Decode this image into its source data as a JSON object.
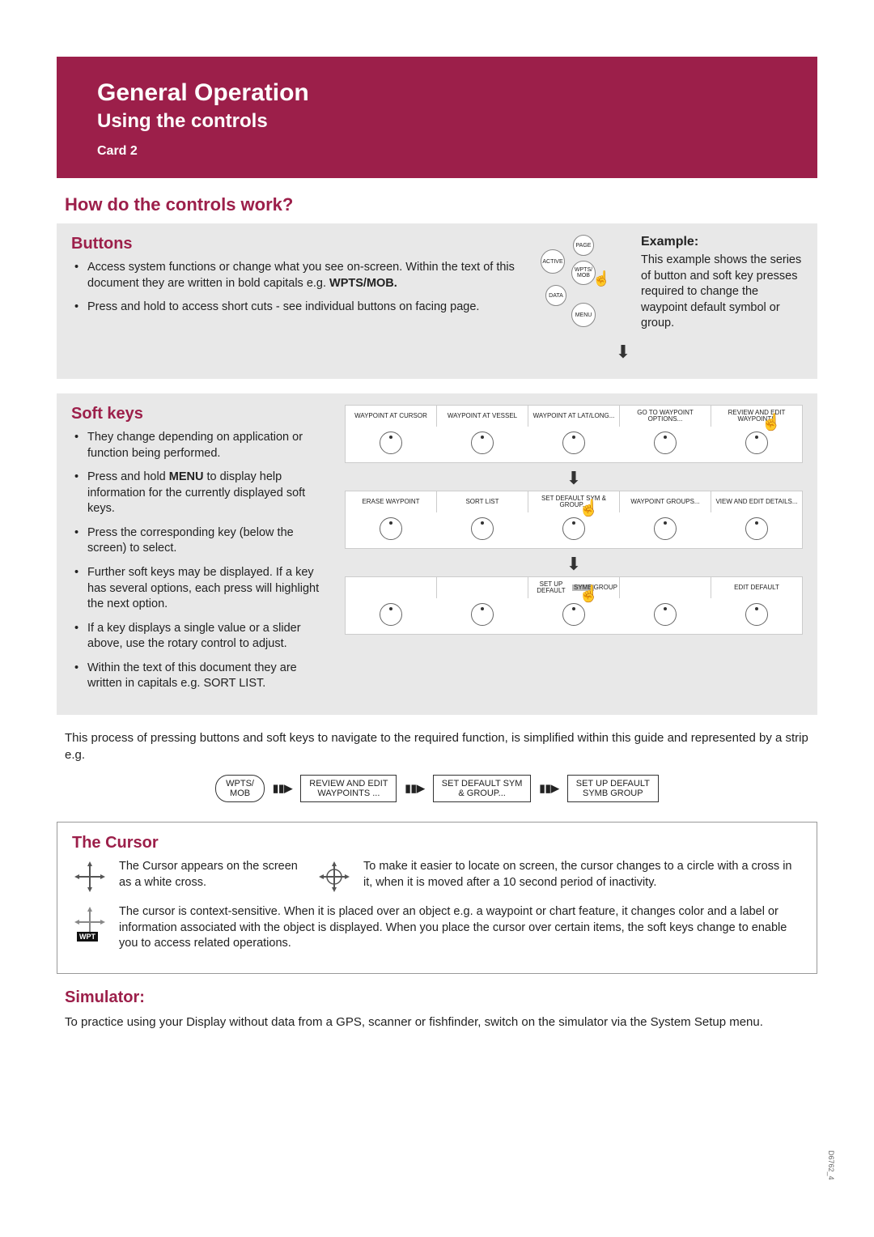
{
  "colors": {
    "brand": "#9c1f4a",
    "gray_box": "#e8e8e8",
    "text": "#222222",
    "border": "#999999"
  },
  "header": {
    "title": "General Operation",
    "subtitle": "Using the controls",
    "card": "Card 2"
  },
  "question": "How do the controls work?",
  "buttons_section": {
    "heading": "Buttons",
    "items": [
      {
        "pre": "Access system functions or change what you see on-screen. Within the text of this document they are written in bold capitals e.g. ",
        "bold": "WPTS/MOB."
      },
      {
        "pre": "Press and hold to access short cuts - see individual buttons on facing page."
      }
    ]
  },
  "example": {
    "heading": "Example:",
    "text": "This example shows the series of button and soft key presses required to change the waypoint default symbol or group.",
    "round_buttons": [
      "PAGE",
      "ACTIVE",
      "WPTS/\nMOB",
      "DATA",
      "MENU"
    ]
  },
  "softkeys_section": {
    "heading": "Soft keys",
    "items": [
      "They change depending on application or function being performed.",
      {
        "pre": "Press and hold ",
        "bold": "MENU",
        "post": " to display help information for the currently displayed soft keys."
      },
      "Press the corresponding key (below the screen) to select.",
      "Further soft keys may be displayed. If a key has several options, each press will highlight the next option.",
      "If a key displays a single value or a slider above, use the rotary control to adjust.",
      "Within the text of this document they are written in capitals e.g. SORT LIST."
    ]
  },
  "soft_panels": [
    {
      "labels": [
        "WAYPOINT AT CURSOR",
        "WAYPOINT AT VESSEL",
        "WAYPOINT AT LAT/LONG...",
        "GO TO WAYPOINT OPTIONS...",
        "REVIEW AND EDIT WAYPOINTS"
      ],
      "press_index": 4
    },
    {
      "labels": [
        "ERASE WAYPOINT",
        "SORT LIST",
        "SET DEFAULT SYM & GROUP...",
        "WAYPOINT GROUPS...",
        "VIEW AND EDIT DETAILS..."
      ],
      "press_index": 2
    },
    {
      "labels": [
        "",
        "",
        "SET UP DEFAULT  SYMB  GROUP",
        "",
        "EDIT DEFAULT"
      ],
      "press_index": 2,
      "highlight": "SYMB"
    }
  ],
  "process_text": "This process of pressing buttons and soft keys to navigate to the required function, is simplified within this guide and represented by a strip e.g.",
  "strip": [
    {
      "type": "oval",
      "text": "WPTS/\nMOB"
    },
    {
      "type": "rect",
      "text": "REVIEW AND EDIT\nWAYPOINTS ..."
    },
    {
      "type": "rect",
      "text": "SET DEFAULT SYM\n& GROUP..."
    },
    {
      "type": "rect",
      "text": "SET UP DEFAULT\nSYMB   GROUP"
    }
  ],
  "cursor": {
    "heading": "The Cursor",
    "line1": "The Cursor appears on the screen as a white cross.",
    "line2": "To make it easier to locate on screen, the cursor changes to a circle with a cross in it, when it is moved after a 10 second period of inactivity.",
    "line3": "The cursor is context-sensitive.  When it is placed over an object e.g. a waypoint or chart feature, it changes color and a label or information associated with the object is displayed.  When you place the cursor over certain items, the soft keys change to enable you to access related operations.",
    "wpt_label": "WPT"
  },
  "simulator": {
    "heading": "Simulator:",
    "text": "To practice using your Display without data from a GPS, scanner or fishfinder, switch on the simulator via the System Setup menu."
  },
  "sidecode": "D6762_4"
}
